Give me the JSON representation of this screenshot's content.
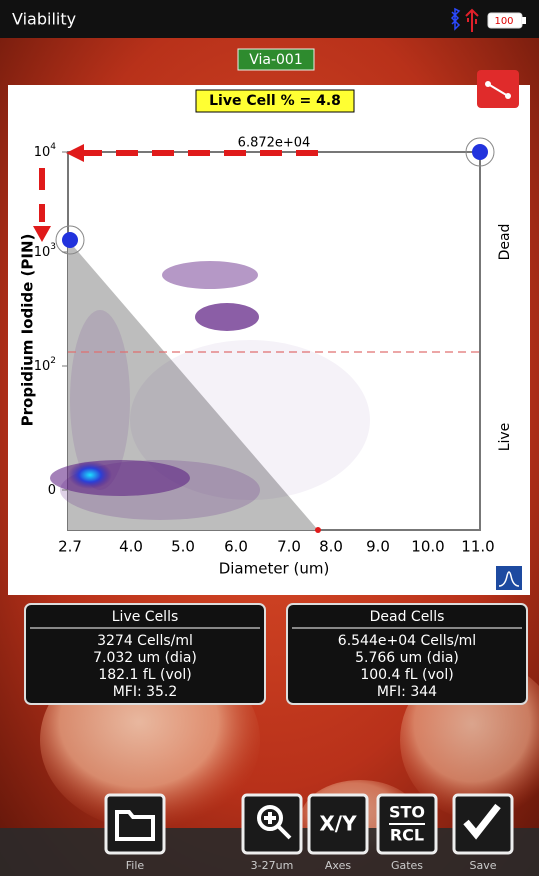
{
  "status_bar": {
    "title": "Viability",
    "battery": "100"
  },
  "sample_id": "Via-001",
  "plot": {
    "result": "Live Cell % = 4.8",
    "top_count": "6.872e+04",
    "x_label": "Diameter (um)",
    "y_label": "Propidium Iodide (PIN)",
    "x_ticks": [
      "2.7",
      "4.0",
      "5.0",
      "6.0",
      "7.0",
      "8.0",
      "9.0",
      "10.0",
      "11.0"
    ],
    "y_ticks": [
      {
        "base": "10",
        "exp": "4"
      },
      {
        "base": "10",
        "exp": "3"
      },
      {
        "base": "10",
        "exp": "2"
      },
      {
        "base": "0",
        "exp": ""
      }
    ],
    "region_top": "Dead",
    "region_bottom": "Live"
  },
  "panels": [
    {
      "title": "Live Cells",
      "lines": [
        "3274 Cells/ml",
        "7.032 um (dia)",
        "182.1 fL (vol)",
        "MFI:  35.2"
      ]
    },
    {
      "title": "Dead Cells",
      "lines": [
        "6.544e+04 Cells/ml",
        "5.766 um (dia)",
        "100.4 fL (vol)",
        "MFI:   344"
      ]
    }
  ],
  "toolbar": {
    "buttons": [
      {
        "label": "File"
      },
      {
        "label": "3-27um"
      },
      {
        "label": "Axes",
        "icon_text": "X/Y"
      },
      {
        "label": "Gates",
        "icon_text": "STO",
        "icon_text2": "RCL"
      },
      {
        "label": "Save"
      }
    ]
  }
}
